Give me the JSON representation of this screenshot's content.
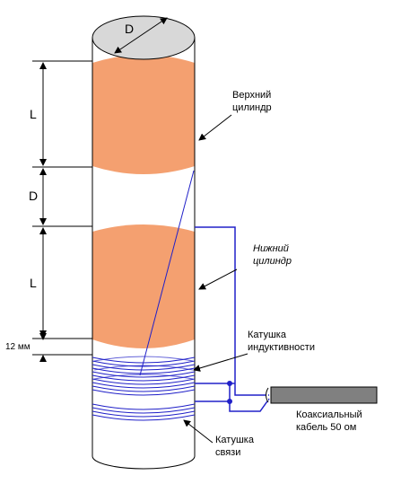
{
  "diagram": {
    "dimension_labels": {
      "diameter": "D",
      "upper_length": "L",
      "gap": "D",
      "lower_length": "L",
      "coil_offset": "12 мм"
    },
    "callouts": {
      "upper_cylinder": [
        "Верхний",
        "цилиндр"
      ],
      "lower_cylinder": [
        "Нижний",
        "цилиндр"
      ],
      "inductance_coil": [
        "Катушка",
        "индуктивности"
      ],
      "coax_cable": [
        "Коаксиальный",
        "кабель 50 ом"
      ],
      "coupling_coil": [
        "Катушка",
        "связи"
      ]
    },
    "colors": {
      "cylinder_fill": "#f4a070",
      "coil": "#2020c8",
      "cable": "#808080",
      "tube": "#ffffff",
      "top_cap": "#d8d8d8"
    }
  }
}
